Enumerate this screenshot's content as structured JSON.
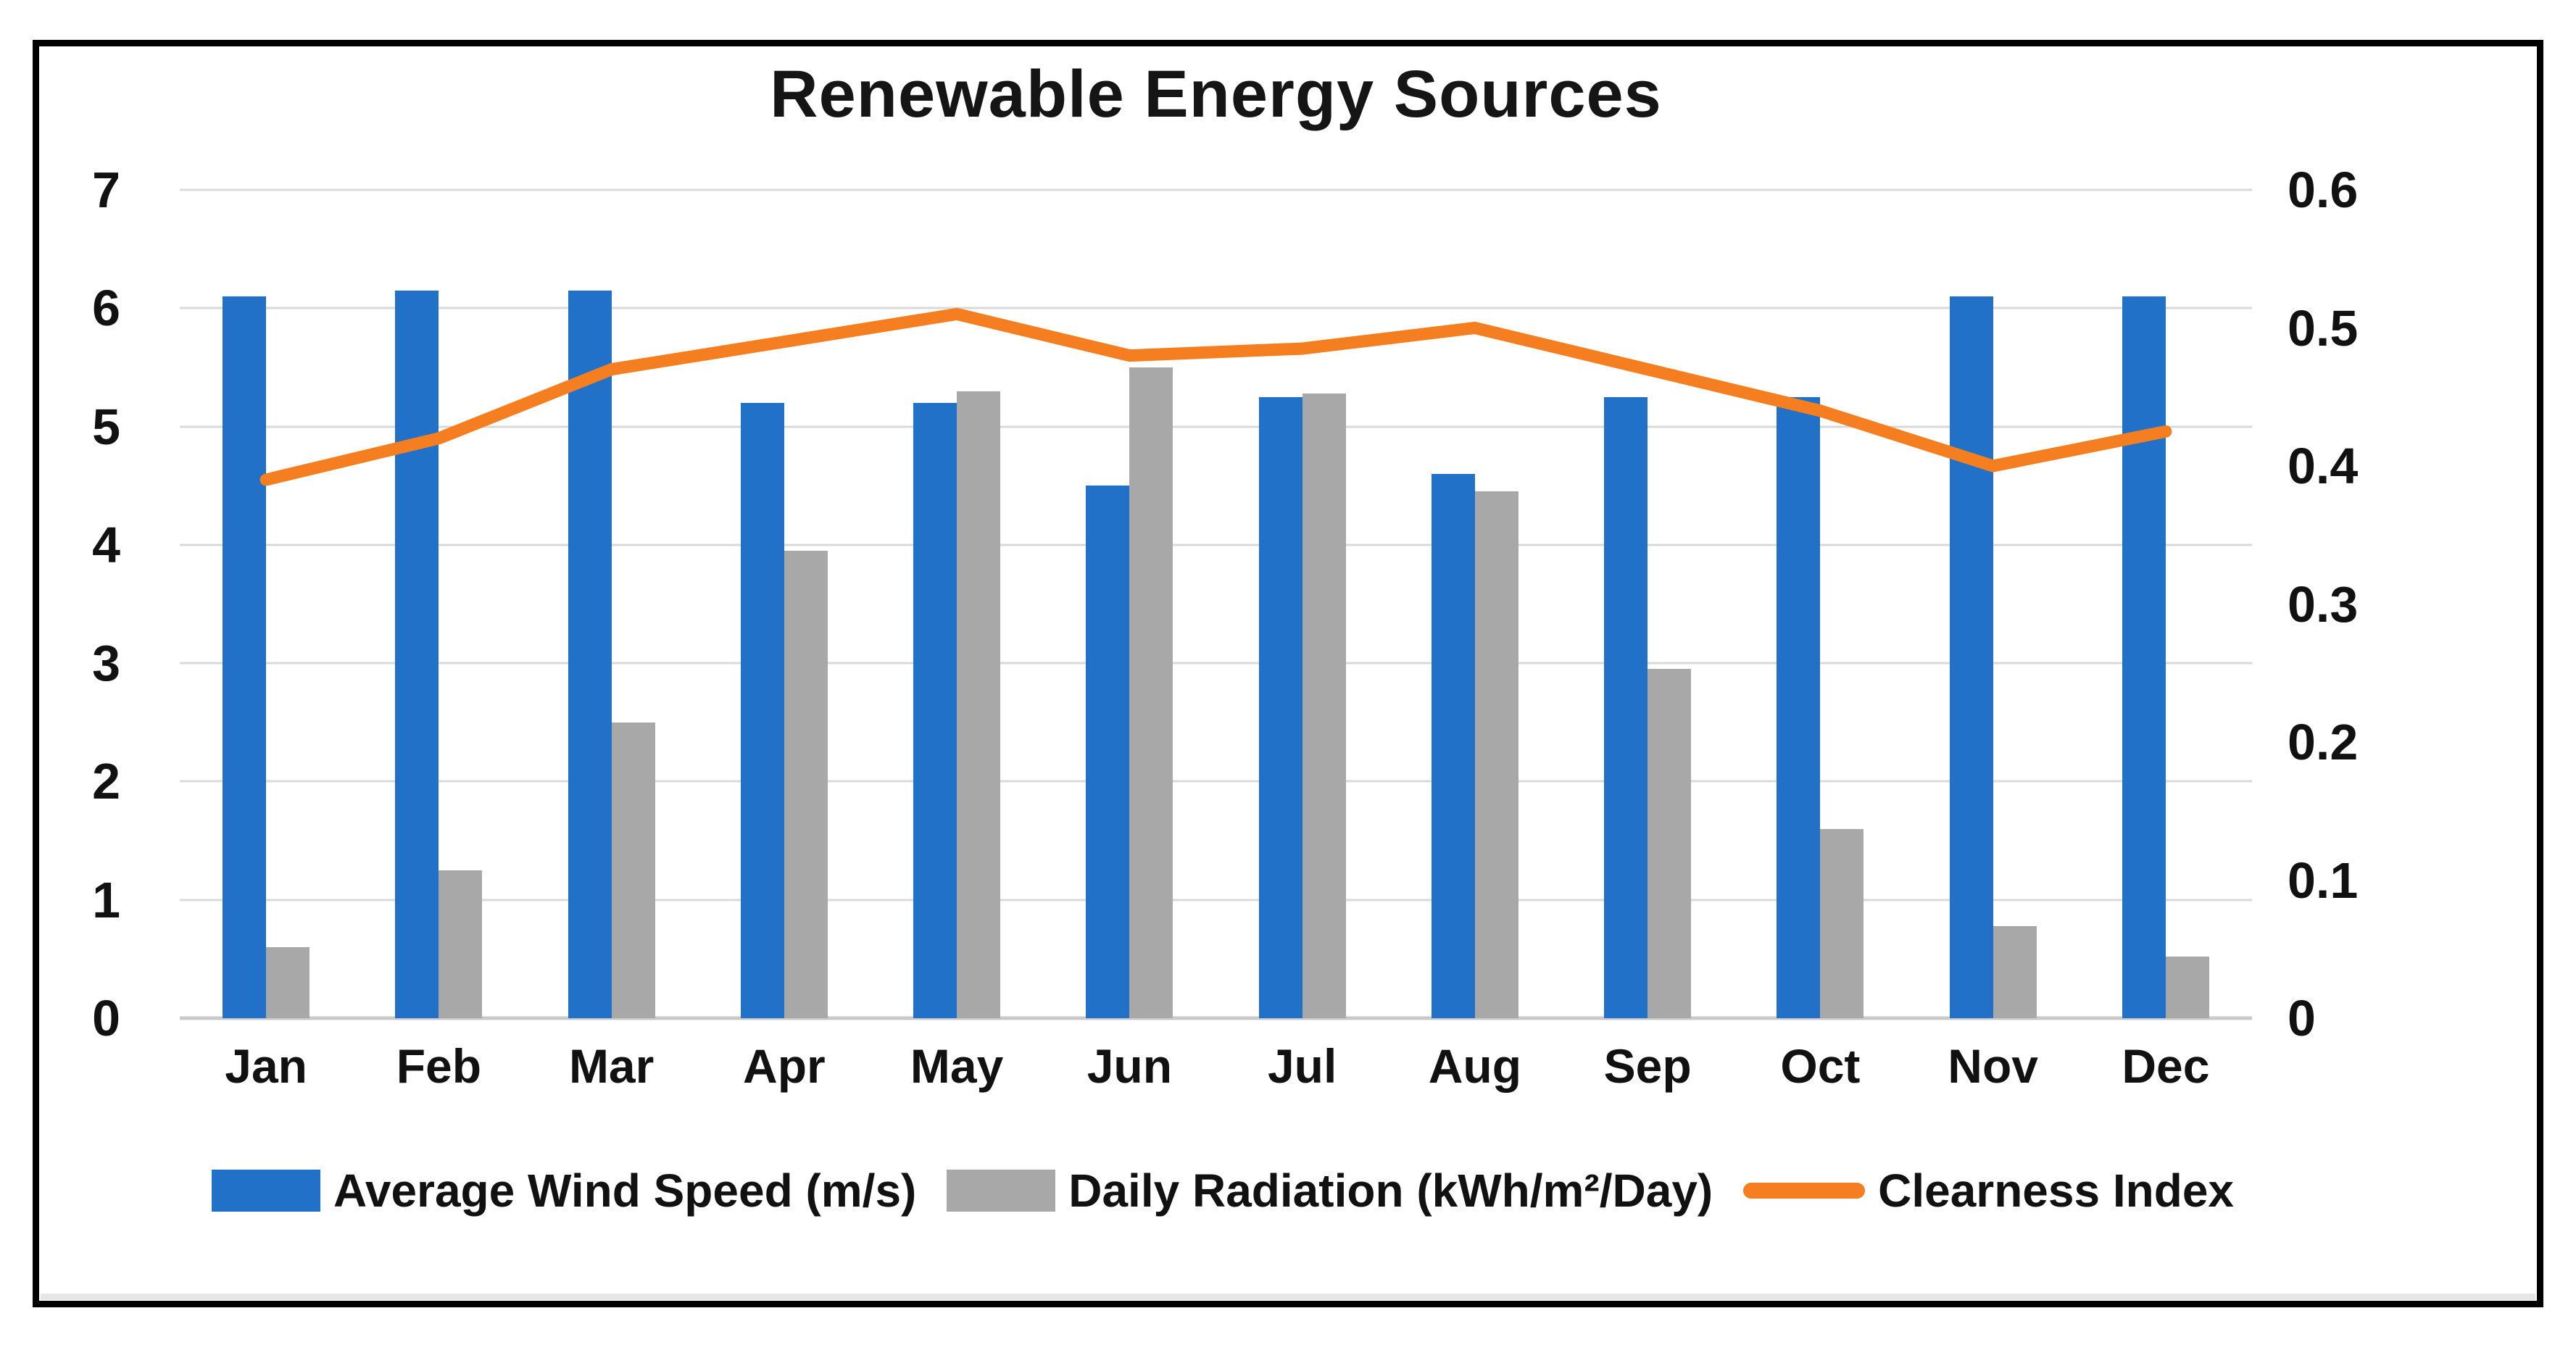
{
  "chart_data": {
    "type": "combo-bar-line",
    "title": "Renewable Energy Sources",
    "categories": [
      "Jan",
      "Feb",
      "Mar",
      "Apr",
      "May",
      "Jun",
      "Jul",
      "Aug",
      "Sep",
      "Oct",
      "Nov",
      "Dec"
    ],
    "series": [
      {
        "name": "Average Wind Speed (m/s)",
        "type": "bar",
        "axis": "left",
        "color": "#2071C7",
        "values": [
          6.1,
          6.15,
          6.15,
          5.2,
          5.2,
          4.5,
          5.25,
          4.6,
          5.25,
          5.25,
          6.1,
          6.1
        ]
      },
      {
        "name": "Daily Radiation (kWh/m²/Day)",
        "type": "bar",
        "axis": "left",
        "color": "#A8A8A8",
        "values": [
          0.6,
          1.25,
          2.5,
          3.95,
          5.3,
          5.5,
          5.28,
          4.45,
          2.95,
          1.6,
          0.78,
          0.52
        ]
      },
      {
        "name": "Clearness Index",
        "type": "line",
        "axis": "right",
        "color": "#F57E20",
        "values": [
          0.39,
          0.42,
          0.47,
          0.49,
          0.51,
          0.48,
          0.485,
          0.5,
          0.47,
          0.44,
          0.4,
          0.425
        ]
      }
    ],
    "left_axis": {
      "min": 0,
      "max": 7,
      "tick_labels": [
        "7",
        "6",
        "5",
        "4",
        "3",
        "2",
        "1",
        "0"
      ]
    },
    "right_axis": {
      "min": 0,
      "max": 0.6,
      "tick_labels": [
        "0.6",
        "0.5",
        "0.4",
        "0.3",
        "0.2",
        "0.1",
        "0"
      ]
    },
    "grid": "horizontal-only",
    "legend_position": "bottom",
    "colors": {
      "gridline": "#D9D9D9",
      "zero_line": "#C9C9C9",
      "text": "#111111",
      "frame_border": "#000000",
      "background": "#FFFFFF"
    }
  }
}
